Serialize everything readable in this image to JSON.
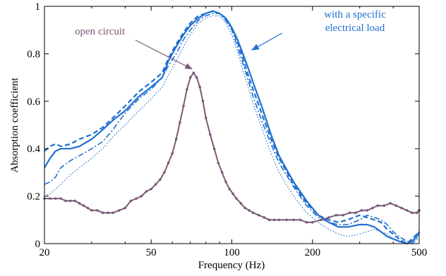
{
  "chart_data": {
    "type": "line",
    "xscale": "log",
    "xlim": [
      20,
      500
    ],
    "ylim": [
      0,
      1
    ],
    "xlabel": "Frequency (Hz)",
    "ylabel": "Absorption coefficient",
    "xticks": [
      20,
      50,
      100,
      200,
      500
    ],
    "xtick_labels": [
      "20",
      "50",
      "100",
      "200",
      "500"
    ],
    "yticks": [
      0,
      0.2,
      0.4,
      0.6,
      0.8,
      1
    ],
    "ytick_labels": [
      "0",
      "0.2",
      "0.4",
      "0.6",
      "0.8",
      "1"
    ],
    "grid": false,
    "colors": {
      "load": "#1f6fd0",
      "open": "#7a5a78"
    },
    "annotations": [
      {
        "lines": [
          "open circuit"
        ],
        "color": "purple",
        "points_to": {
          "x": 72,
          "y": 0.71
        }
      },
      {
        "lines": [
          "with a specific",
          "electrical load"
        ],
        "color": "blue",
        "points_to": {
          "x": 110,
          "y": 0.76
        }
      }
    ],
    "series": [
      {
        "style": "solid",
        "color": "load",
        "x": [
          20,
          21,
          22,
          23,
          25,
          27,
          30,
          33,
          36,
          40,
          45,
          50,
          55,
          58,
          62,
          66,
          70,
          75,
          80,
          85,
          90,
          95,
          100,
          105,
          110,
          115,
          120,
          130,
          140,
          150,
          170,
          190,
          210,
          230,
          250,
          270,
          300,
          320,
          340,
          360,
          380,
          400,
          420,
          450,
          470,
          490,
          500
        ],
        "y": [
          0.32,
          0.36,
          0.39,
          0.4,
          0.4,
          0.41,
          0.44,
          0.48,
          0.52,
          0.56,
          0.62,
          0.66,
          0.7,
          0.77,
          0.83,
          0.88,
          0.92,
          0.95,
          0.97,
          0.98,
          0.97,
          0.95,
          0.91,
          0.86,
          0.8,
          0.74,
          0.68,
          0.57,
          0.46,
          0.37,
          0.26,
          0.18,
          0.12,
          0.09,
          0.07,
          0.07,
          0.08,
          0.08,
          0.07,
          0.05,
          0.03,
          0.02,
          0.01,
          0.0,
          0.01,
          0.03,
          0.05
        ]
      },
      {
        "style": "dashed",
        "color": "load",
        "x": [
          20,
          21,
          22,
          23,
          25,
          27,
          30,
          33,
          36,
          40,
          45,
          50,
          55,
          58,
          62,
          66,
          70,
          75,
          80,
          85,
          90,
          95,
          100,
          105,
          110,
          115,
          120,
          130,
          140,
          150,
          170,
          190,
          210,
          230,
          250,
          270,
          300,
          320,
          340,
          360,
          380,
          400,
          420,
          450,
          470,
          490,
          500
        ],
        "y": [
          0.39,
          0.41,
          0.42,
          0.41,
          0.42,
          0.44,
          0.46,
          0.49,
          0.53,
          0.58,
          0.64,
          0.68,
          0.72,
          0.78,
          0.84,
          0.89,
          0.93,
          0.96,
          0.97,
          0.98,
          0.97,
          0.95,
          0.91,
          0.85,
          0.78,
          0.71,
          0.65,
          0.54,
          0.44,
          0.36,
          0.25,
          0.17,
          0.12,
          0.1,
          0.09,
          0.1,
          0.12,
          0.11,
          0.1,
          0.09,
          0.06,
          0.04,
          0.02,
          0.0,
          0.02,
          0.04,
          0.05
        ]
      },
      {
        "style": "dashdot",
        "color": "load",
        "x": [
          20,
          21,
          22,
          23,
          25,
          27,
          30,
          33,
          36,
          40,
          45,
          50,
          55,
          58,
          62,
          66,
          70,
          75,
          80,
          85,
          90,
          95,
          100,
          105,
          110,
          115,
          120,
          130,
          140,
          150,
          170,
          190,
          210,
          230,
          250,
          270,
          300,
          320,
          340,
          360,
          380,
          400,
          420,
          450,
          470,
          490,
          500
        ],
        "y": [
          0.25,
          0.26,
          0.28,
          0.32,
          0.35,
          0.37,
          0.4,
          0.43,
          0.48,
          0.55,
          0.61,
          0.65,
          0.7,
          0.75,
          0.8,
          0.86,
          0.9,
          0.94,
          0.96,
          0.97,
          0.97,
          0.94,
          0.9,
          0.83,
          0.76,
          0.69,
          0.62,
          0.51,
          0.42,
          0.34,
          0.24,
          0.16,
          0.11,
          0.09,
          0.08,
          0.08,
          0.1,
          0.12,
          0.11,
          0.1,
          0.08,
          0.05,
          0.03,
          0.01,
          0.0,
          0.02,
          0.03
        ]
      },
      {
        "style": "dotted",
        "color": "load",
        "x": [
          20,
          21,
          22,
          23,
          25,
          27,
          30,
          33,
          36,
          40,
          45,
          50,
          55,
          58,
          62,
          66,
          70,
          75,
          80,
          85,
          90,
          95,
          100,
          105,
          110,
          115,
          120,
          130,
          140,
          150,
          170,
          190,
          210,
          230,
          250,
          270,
          300,
          320,
          340,
          360,
          380,
          400,
          420,
          450,
          470,
          490,
          500
        ],
        "y": [
          0.2,
          0.21,
          0.23,
          0.25,
          0.29,
          0.32,
          0.36,
          0.4,
          0.45,
          0.5,
          0.56,
          0.61,
          0.66,
          0.71,
          0.77,
          0.83,
          0.88,
          0.93,
          0.95,
          0.96,
          0.96,
          0.93,
          0.88,
          0.81,
          0.73,
          0.66,
          0.59,
          0.48,
          0.38,
          0.3,
          0.2,
          0.13,
          0.09,
          0.06,
          0.04,
          0.03,
          0.04,
          0.05,
          0.06,
          0.05,
          0.04,
          0.02,
          0.01,
          0.0,
          0.01,
          0.02,
          0.03
        ]
      },
      {
        "style": "solid-markers",
        "color": "open",
        "x": [
          20,
          21,
          22,
          23,
          24,
          25,
          26,
          27,
          28,
          29,
          30,
          31.5,
          33,
          34.5,
          36,
          38,
          40,
          42,
          44,
          46,
          48,
          50,
          52,
          54,
          56,
          58,
          60,
          62,
          64,
          66,
          68,
          70,
          72,
          74,
          76,
          78,
          80,
          83,
          86,
          89,
          92,
          95,
          98,
          101,
          104,
          108,
          112,
          116,
          120,
          126,
          132,
          138,
          144,
          150,
          160,
          170,
          180,
          190,
          200,
          215,
          230,
          245,
          260,
          275,
          290,
          305,
          320,
          335,
          350,
          370,
          390,
          410,
          430,
          450,
          470,
          490,
          500
        ],
        "y": [
          0.19,
          0.19,
          0.19,
          0.19,
          0.18,
          0.18,
          0.18,
          0.17,
          0.16,
          0.15,
          0.14,
          0.14,
          0.13,
          0.13,
          0.13,
          0.14,
          0.15,
          0.18,
          0.19,
          0.2,
          0.22,
          0.23,
          0.25,
          0.27,
          0.3,
          0.34,
          0.38,
          0.44,
          0.51,
          0.58,
          0.65,
          0.7,
          0.72,
          0.7,
          0.66,
          0.6,
          0.53,
          0.46,
          0.4,
          0.34,
          0.3,
          0.26,
          0.23,
          0.21,
          0.19,
          0.17,
          0.15,
          0.14,
          0.13,
          0.12,
          0.11,
          0.1,
          0.1,
          0.1,
          0.1,
          0.1,
          0.1,
          0.09,
          0.09,
          0.1,
          0.11,
          0.12,
          0.12,
          0.13,
          0.13,
          0.14,
          0.14,
          0.15,
          0.16,
          0.16,
          0.17,
          0.16,
          0.15,
          0.14,
          0.13,
          0.13,
          0.14
        ]
      }
    ]
  }
}
